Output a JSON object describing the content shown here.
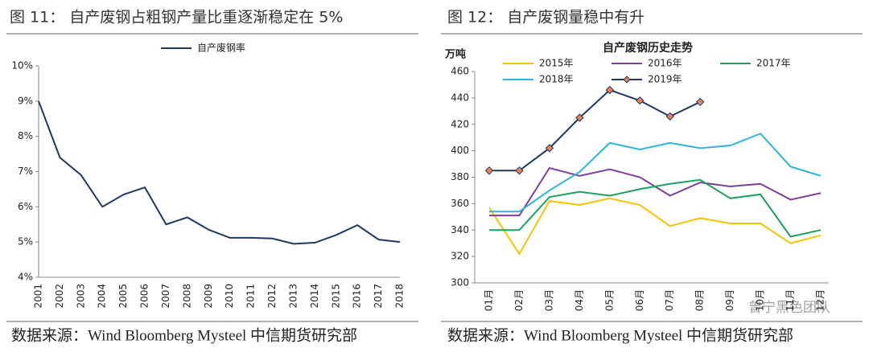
{
  "chart_data": [
    {
      "type": "line",
      "title": "图 11：    自产废钢占粗钢产量比重逐渐稳定在 5%",
      "categories": [
        "2001",
        "2002",
        "2003",
        "2004",
        "2005",
        "2006",
        "2007",
        "2008",
        "2009",
        "2010",
        "2011",
        "2012",
        "2013",
        "2014",
        "2015",
        "2016",
        "2017",
        "2018"
      ],
      "series": [
        {
          "name": "自产废钢率",
          "color": "#1f3864",
          "values": [
            9.0,
            7.4,
            6.9,
            6.0,
            6.35,
            6.55,
            5.5,
            5.7,
            5.35,
            5.12,
            5.12,
            5.1,
            4.95,
            4.98,
            5.2,
            5.48,
            5.07,
            5.0
          ]
        }
      ],
      "ylim": [
        4,
        10
      ],
      "yticks": [
        {
          "value": 4,
          "label": "4%"
        },
        {
          "value": 5,
          "label": "5%"
        },
        {
          "value": 6,
          "label": "6%"
        },
        {
          "value": 7,
          "label": "7%"
        },
        {
          "value": 8,
          "label": "8%"
        },
        {
          "value": 9,
          "label": "9%"
        },
        {
          "value": 10,
          "label": "10%"
        }
      ],
      "legend": "top",
      "source": "数据来源：Wind Bloomberg Mysteel 中信期货研究部"
    },
    {
      "type": "line",
      "title": "图 12：    自产废钢量稳中有升",
      "subtitle": "自产废钢历史走势",
      "ylabel": "万吨",
      "categories": [
        "01月",
        "02月",
        "03月",
        "04月",
        "05月",
        "06月",
        "07月",
        "08月",
        "09月",
        "10月",
        "11月",
        "12月"
      ],
      "series": [
        {
          "name": "2015年",
          "color": "#f5c400",
          "values": [
            357,
            322,
            362,
            359,
            364,
            359,
            343,
            349,
            345,
            345,
            330,
            336
          ]
        },
        {
          "name": "2016年",
          "color": "#7f3f98",
          "values": [
            351,
            351,
            387,
            381,
            386,
            380,
            366,
            376,
            373,
            375,
            363,
            368
          ]
        },
        {
          "name": "2017年",
          "color": "#1aa260",
          "values": [
            340,
            340,
            365,
            369,
            366,
            371,
            375,
            378,
            364,
            367,
            335,
            340
          ]
        },
        {
          "name": "2018年",
          "color": "#2bb5e0",
          "values": [
            354,
            354,
            370,
            384,
            406,
            401,
            406,
            402,
            404,
            413,
            388,
            381
          ]
        },
        {
          "name": "2019年",
          "color": "#1f3864",
          "marker": "diamond",
          "marker_color": "#e8835a",
          "values": [
            385,
            385,
            402,
            425,
            446,
            438,
            426,
            437,
            null,
            null,
            null,
            null
          ]
        }
      ],
      "ylim": [
        300,
        460
      ],
      "yticks": [
        300,
        320,
        340,
        360,
        380,
        400,
        420,
        440,
        460
      ],
      "legend": "top",
      "watermark": "曾宁黑色团队",
      "source": "数据来源：Wind Bloomberg Mysteel 中信期货研究部"
    }
  ]
}
